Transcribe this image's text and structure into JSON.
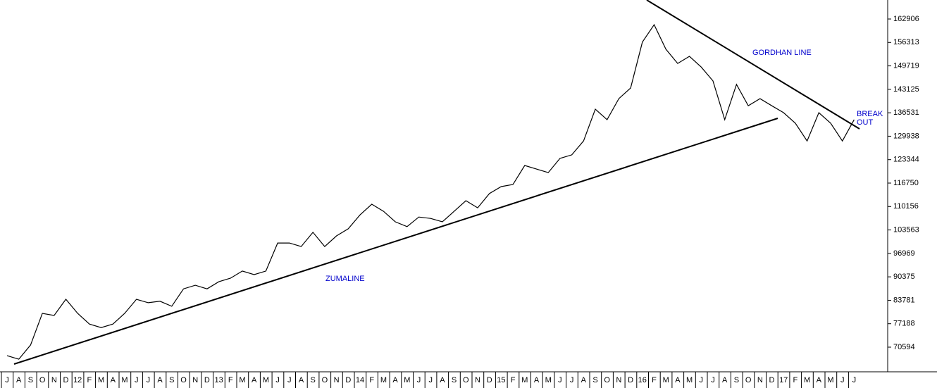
{
  "chart_data": {
    "type": "line",
    "categories": [
      "J",
      "A",
      "S",
      "O",
      "N",
      "D",
      "12",
      "F",
      "M",
      "A",
      "M",
      "J",
      "J",
      "A",
      "S",
      "O",
      "N",
      "D",
      "13",
      "F",
      "M",
      "A",
      "M",
      "J",
      "J",
      "A",
      "S",
      "O",
      "N",
      "D",
      "14",
      "F",
      "M",
      "A",
      "M",
      "J",
      "J",
      "A",
      "S",
      "O",
      "N",
      "D",
      "15",
      "F",
      "M",
      "A",
      "M",
      "J",
      "J",
      "A",
      "S",
      "O",
      "N",
      "D",
      "16",
      "F",
      "M",
      "A",
      "M",
      "J",
      "J",
      "A",
      "S",
      "O",
      "N",
      "D",
      "17",
      "F",
      "M",
      "A",
      "M",
      "J",
      "J"
    ],
    "series": [
      {
        "color": "#000000",
        "values": [
          68200,
          67200,
          71200,
          80100,
          79500,
          84060,
          80100,
          77100,
          76100,
          77100,
          80100,
          84060,
          83100,
          83500,
          82100,
          87000,
          88000,
          87000,
          89000,
          90000,
          92000,
          91000,
          92000,
          99900,
          99900,
          98900,
          102900,
          98900,
          101900,
          103900,
          107800,
          110800,
          108800,
          105850,
          104500,
          107200,
          106800,
          105850,
          108800,
          111800,
          109800,
          113800,
          115760,
          116350,
          121700,
          120700,
          119700,
          123700,
          124700,
          128600,
          137550,
          134600,
          140500,
          143500,
          156400,
          161300,
          154400,
          150400,
          152400,
          149400,
          145500,
          134600,
          144500,
          138500,
          140500,
          138500,
          136550,
          133600,
          128600,
          136550,
          133600,
          128600,
          134600
        ]
      }
    ],
    "ylim": [
      64849,
      168255
    ],
    "yticks": [
      70594,
      77188,
      83781,
      90375,
      96969,
      103563,
      110156,
      116750,
      123344,
      129938,
      136531,
      143125,
      149719,
      156313,
      162906
    ],
    "annotations": [
      "GORDHAN LINE",
      "ZUMALINE",
      "BREAK",
      "OUT"
    ]
  }
}
